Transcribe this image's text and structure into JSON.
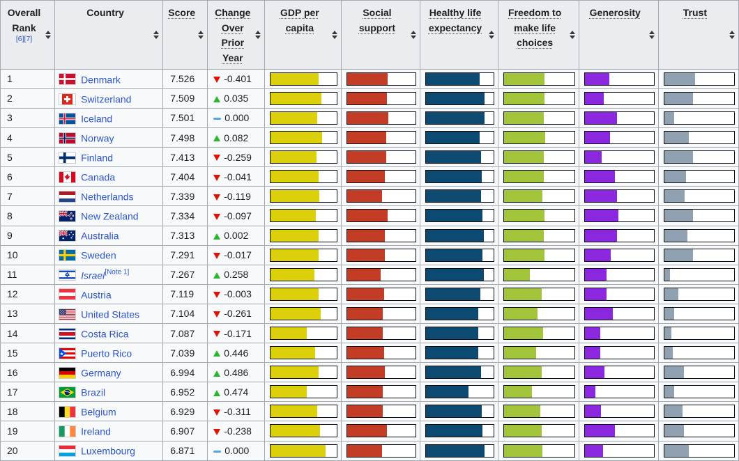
{
  "table": {
    "columns": [
      {
        "label": "Overall Rank",
        "refs": [
          "[6]",
          "[7]"
        ],
        "sortable": true,
        "tooltip": false
      },
      {
        "label": "Country",
        "sortable": true,
        "tooltip": false
      },
      {
        "label": "Score",
        "sortable": true,
        "tooltip": true
      },
      {
        "label": "Change Over Prior Year",
        "sortable": true,
        "tooltip": true
      },
      {
        "label": "GDP per capita",
        "sortable": true,
        "tooltip": true
      },
      {
        "label": "Social support",
        "sortable": true,
        "tooltip": true
      },
      {
        "label": "Healthy life expectancy",
        "sortable": true,
        "tooltip": true
      },
      {
        "label": "Freedom to make life choices",
        "sortable": true,
        "tooltip": true
      },
      {
        "label": "Generosity",
        "sortable": true,
        "tooltip": true
      },
      {
        "label": "Trust",
        "sortable": true,
        "tooltip": true
      }
    ],
    "rows": [
      {
        "rank": "1",
        "country": "Denmark",
        "flag": "denmark",
        "score": "7.526",
        "change": "-0.401",
        "trend": "down"
      },
      {
        "rank": "2",
        "country": "Switzerland",
        "flag": "switzerland",
        "score": "7.509",
        "change": "0.035",
        "trend": "up"
      },
      {
        "rank": "3",
        "country": "Iceland",
        "flag": "iceland",
        "score": "7.501",
        "change": "0.000",
        "trend": "zero"
      },
      {
        "rank": "4",
        "country": "Norway",
        "flag": "norway",
        "score": "7.498",
        "change": "0.082",
        "trend": "up"
      },
      {
        "rank": "5",
        "country": "Finland",
        "flag": "finland",
        "score": "7.413",
        "change": "-0.259",
        "trend": "down"
      },
      {
        "rank": "6",
        "country": "Canada",
        "flag": "canada",
        "score": "7.404",
        "change": "-0.041",
        "trend": "down"
      },
      {
        "rank": "7",
        "country": "Netherlands",
        "flag": "netherlands",
        "score": "7.339",
        "change": "-0.119",
        "trend": "down"
      },
      {
        "rank": "8",
        "country": "New Zealand",
        "flag": "new-zealand",
        "score": "7.334",
        "change": "-0.097",
        "trend": "down"
      },
      {
        "rank": "9",
        "country": "Australia",
        "flag": "australia",
        "score": "7.313",
        "change": "0.002",
        "trend": "up"
      },
      {
        "rank": "10",
        "country": "Sweden",
        "flag": "sweden",
        "score": "7.291",
        "change": "-0.017",
        "trend": "down"
      },
      {
        "rank": "11",
        "country": "Israel",
        "flag": "israel",
        "score": "7.267",
        "change": "0.258",
        "trend": "up",
        "italic": true,
        "note": "[Note 1]"
      },
      {
        "rank": "12",
        "country": "Austria",
        "flag": "austria",
        "score": "7.119",
        "change": "-0.003",
        "trend": "down"
      },
      {
        "rank": "13",
        "country": "United States",
        "flag": "united-states",
        "score": "7.104",
        "change": "-0.261",
        "trend": "down"
      },
      {
        "rank": "14",
        "country": "Costa Rica",
        "flag": "costa-rica",
        "score": "7.087",
        "change": "-0.171",
        "trend": "down"
      },
      {
        "rank": "15",
        "country": "Puerto Rico",
        "flag": "puerto-rico",
        "score": "7.039",
        "change": "0.446",
        "trend": "up"
      },
      {
        "rank": "16",
        "country": "Germany",
        "flag": "germany",
        "score": "6.994",
        "change": "0.486",
        "trend": "up"
      },
      {
        "rank": "17",
        "country": "Brazil",
        "flag": "brazil",
        "score": "6.952",
        "change": "0.474",
        "trend": "up"
      },
      {
        "rank": "18",
        "country": "Belgium",
        "flag": "belgium",
        "score": "6.929",
        "change": "-0.311",
        "trend": "down"
      },
      {
        "rank": "19",
        "country": "Ireland",
        "flag": "ireland",
        "score": "6.907",
        "change": "-0.238",
        "trend": "down"
      },
      {
        "rank": "20",
        "country": "Luxembourg",
        "flag": "luxembourg",
        "score": "6.871",
        "change": "0.000",
        "trend": "zero"
      }
    ]
  },
  "colors": {
    "header_bg": "#eaecf0",
    "row_bg": "#f8f9fa",
    "border": "#a2a9b1",
    "link": "#2b55cd",
    "change_up": "#2cb52c",
    "change_down": "#df1205",
    "change_zero": "#55a3e0"
  },
  "chart_data": {
    "type": "bar",
    "title": "World Happiness Report score components per country (in-cell bar charts)",
    "categories": [
      "Denmark",
      "Switzerland",
      "Iceland",
      "Norway",
      "Finland",
      "Canada",
      "Netherlands",
      "New Zealand",
      "Australia",
      "Sweden",
      "Israel",
      "Austria",
      "United States",
      "Costa Rica",
      "Puerto Rico",
      "Germany",
      "Brazil",
      "Belgium",
      "Ireland",
      "Luxembourg"
    ],
    "value_unit": "fraction of full bar box (0-1), estimated from bar pixel length",
    "xlim": [
      0,
      1
    ],
    "series": [
      {
        "name": "GDP per capita",
        "color": "#dcd00b",
        "values": [
          0.72,
          0.76,
          0.7,
          0.77,
          0.69,
          0.72,
          0.73,
          0.68,
          0.72,
          0.72,
          0.66,
          0.72,
          0.75,
          0.54,
          0.67,
          0.72,
          0.54,
          0.7,
          0.74,
          0.83
        ]
      },
      {
        "name": "Social support",
        "color": "#c33d26",
        "values": [
          0.59,
          0.58,
          0.6,
          0.57,
          0.57,
          0.55,
          0.51,
          0.59,
          0.55,
          0.55,
          0.49,
          0.54,
          0.52,
          0.52,
          0.54,
          0.55,
          0.52,
          0.52,
          0.58,
          0.51
        ]
      },
      {
        "name": "Healthy life expectancy",
        "color": "#0d4a72",
        "values": [
          0.8,
          0.87,
          0.87,
          0.8,
          0.82,
          0.83,
          0.82,
          0.84,
          0.86,
          0.84,
          0.86,
          0.81,
          0.78,
          0.78,
          0.78,
          0.82,
          0.63,
          0.83,
          0.84,
          0.87
        ]
      },
      {
        "name": "Freedom to make life choices",
        "color": "#a2c53c",
        "values": [
          0.58,
          0.58,
          0.57,
          0.59,
          0.57,
          0.57,
          0.55,
          0.58,
          0.57,
          0.58,
          0.37,
          0.54,
          0.48,
          0.56,
          0.46,
          0.54,
          0.4,
          0.52,
          0.54,
          0.55
        ]
      },
      {
        "name": "Generosity",
        "color": "#8c27e0",
        "values": [
          0.36,
          0.28,
          0.47,
          0.37,
          0.25,
          0.44,
          0.47,
          0.49,
          0.47,
          0.38,
          0.32,
          0.32,
          0.41,
          0.22,
          0.22,
          0.29,
          0.15,
          0.24,
          0.44,
          0.27
        ]
      },
      {
        "name": "Trust",
        "color": "#90a1b1",
        "values": [
          0.44,
          0.41,
          0.14,
          0.35,
          0.41,
          0.31,
          0.29,
          0.41,
          0.33,
          0.41,
          0.08,
          0.2,
          0.14,
          0.1,
          0.12,
          0.28,
          0.14,
          0.26,
          0.28,
          0.35
        ]
      }
    ]
  }
}
